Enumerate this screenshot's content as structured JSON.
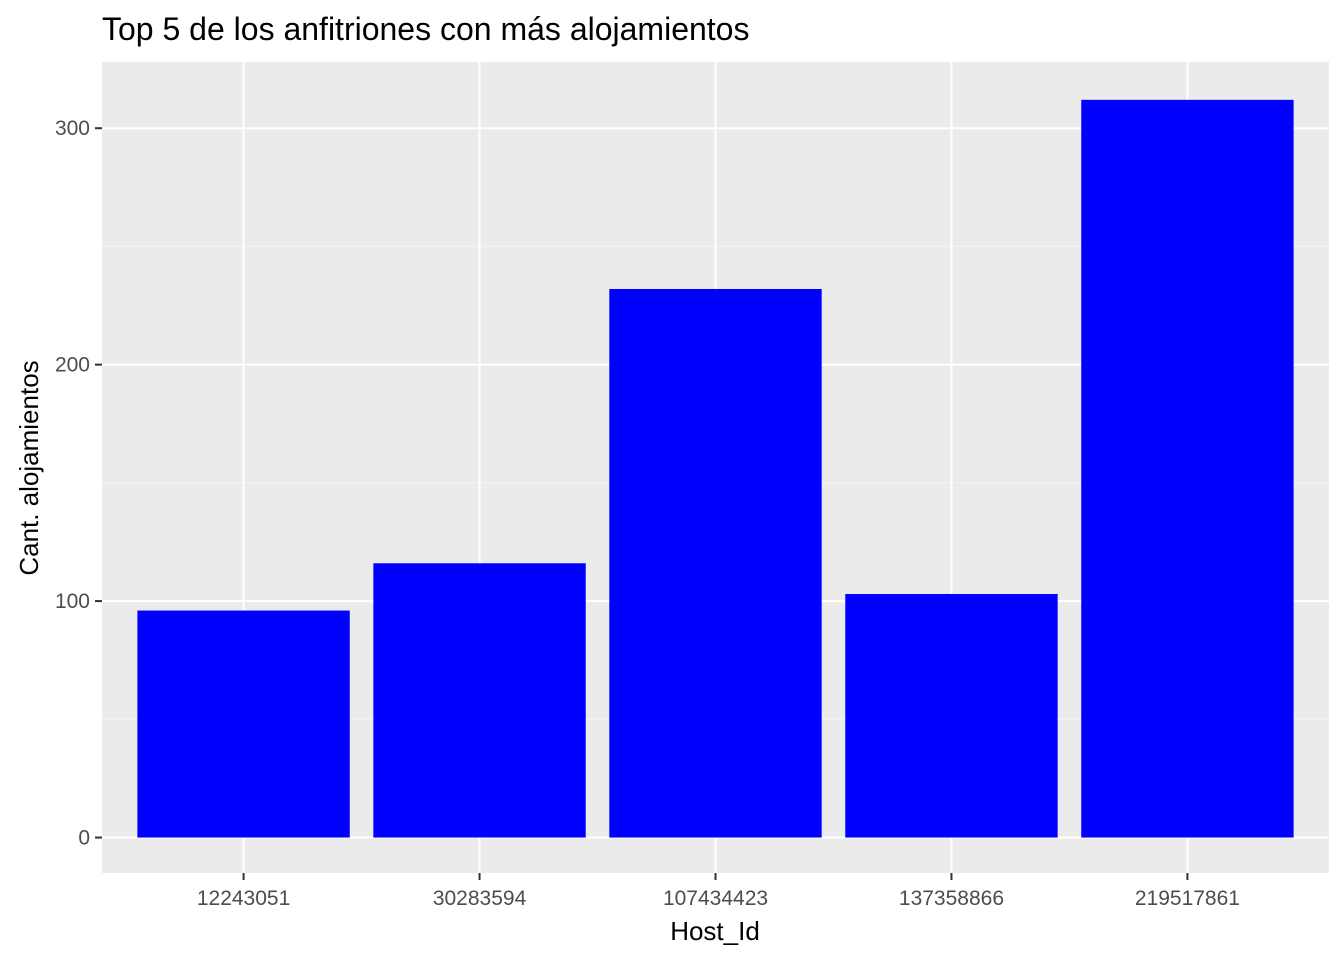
{
  "chart_data": {
    "type": "bar",
    "title": "Top 5 de los anfitriones con más alojamientos",
    "xlabel": "Host_Id",
    "ylabel": "Cant. alojamientos",
    "categories": [
      "12243051",
      "30283594",
      "107434423",
      "137358866",
      "219517861"
    ],
    "values": [
      96,
      116,
      232,
      103,
      312
    ],
    "ylim": [
      -15,
      328
    ],
    "yticks": [
      0,
      100,
      200,
      300
    ],
    "yticks_labels": [
      "0",
      "100",
      "200",
      "300"
    ],
    "grid": true,
    "legend": "none",
    "colors": {
      "bar": "#0000ff",
      "panel": "#ebebeb",
      "grid_major": "#ffffff",
      "grid_minor": "#f5f5f5",
      "tick": "#333333"
    }
  }
}
